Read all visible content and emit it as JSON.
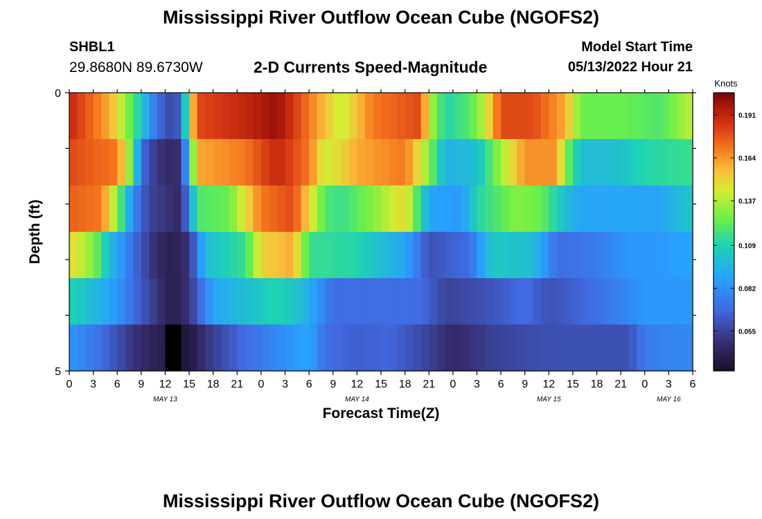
{
  "header": {
    "title": "Mississippi River Outflow Ocean Cube (NGOFS2)",
    "station_id": "SHBL1",
    "coords": "29.8680N  89.6730W",
    "subtitle": "2-D Currents Speed-Magnitude",
    "model_start_label": "Model Start Time",
    "model_start_value": "05/13/2022 Hour 21"
  },
  "footer": {
    "title": "Mississippi River Outflow Ocean Cube (NGOFS2)"
  },
  "chart_data": {
    "type": "heatmap",
    "xlabel": "Forecast Time(Z)",
    "ylabel": "Depth (ft)",
    "x_ticks": [
      "0",
      "3",
      "6",
      "9",
      "12",
      "15",
      "18",
      "21",
      "0",
      "3",
      "6",
      "9",
      "12",
      "15",
      "18",
      "21",
      "0",
      "3",
      "6",
      "9",
      "12",
      "15",
      "18",
      "21",
      "0",
      "3",
      "6"
    ],
    "date_labels": [
      {
        "label": "MAY 13",
        "hour": 12
      },
      {
        "label": "MAY 14",
        "hour": 36
      },
      {
        "label": "MAY 15",
        "hour": 60
      },
      {
        "label": "MAY 16",
        "hour": 75
      }
    ],
    "x_range_hours": [
      0,
      78
    ],
    "y_tick_labels": [
      "0",
      "5"
    ],
    "y_range": [
      0,
      5
    ],
    "colorbar": {
      "label": "Knots",
      "ticks": [
        0.191,
        0.164,
        0.137,
        0.109,
        0.082,
        0.055
      ],
      "range": [
        0.03,
        0.205
      ]
    },
    "rows": [
      {
        "depth_band": 1,
        "keyframes": [
          [
            0,
            0.19
          ],
          [
            5,
            0.16
          ],
          [
            8,
            0.12
          ],
          [
            11,
            0.07
          ],
          [
            13,
            0.055
          ],
          [
            14,
            0.07
          ],
          [
            15,
            0.14
          ],
          [
            16,
            0.18
          ],
          [
            22,
            0.19
          ],
          [
            26,
            0.2
          ],
          [
            30,
            0.17
          ],
          [
            34,
            0.14
          ],
          [
            38,
            0.17
          ],
          [
            44,
            0.18
          ],
          [
            45,
            0.14
          ],
          [
            47,
            0.11
          ],
          [
            50,
            0.12
          ],
          [
            52,
            0.14
          ],
          [
            54,
            0.18
          ],
          [
            58,
            0.18
          ],
          [
            62,
            0.16
          ],
          [
            64,
            0.125
          ],
          [
            69,
            0.125
          ],
          [
            74,
            0.12
          ],
          [
            78,
            0.14
          ]
        ]
      },
      {
        "depth_band": 2,
        "keyframes": [
          [
            0,
            0.18
          ],
          [
            6,
            0.17
          ],
          [
            8,
            0.12
          ],
          [
            9,
            0.07
          ],
          [
            11,
            0.05
          ],
          [
            13,
            0.045
          ],
          [
            14,
            0.05
          ],
          [
            16,
            0.16
          ],
          [
            22,
            0.17
          ],
          [
            26,
            0.19
          ],
          [
            30,
            0.17
          ],
          [
            32,
            0.14
          ],
          [
            36,
            0.16
          ],
          [
            42,
            0.17
          ],
          [
            45,
            0.13
          ],
          [
            47,
            0.095
          ],
          [
            51,
            0.1
          ],
          [
            54,
            0.135
          ],
          [
            57,
            0.165
          ],
          [
            61,
            0.165
          ],
          [
            62,
            0.13
          ],
          [
            64,
            0.1
          ],
          [
            68,
            0.1
          ],
          [
            72,
            0.11
          ],
          [
            78,
            0.115
          ]
        ]
      },
      {
        "depth_band": 3,
        "keyframes": [
          [
            0,
            0.175
          ],
          [
            4,
            0.17
          ],
          [
            6,
            0.13
          ],
          [
            8,
            0.08
          ],
          [
            10,
            0.055
          ],
          [
            14,
            0.045
          ],
          [
            16,
            0.12
          ],
          [
            20,
            0.125
          ],
          [
            24,
            0.17
          ],
          [
            28,
            0.18
          ],
          [
            32,
            0.12
          ],
          [
            34,
            0.115
          ],
          [
            38,
            0.13
          ],
          [
            42,
            0.15
          ],
          [
            45,
            0.09
          ],
          [
            49,
            0.085
          ],
          [
            51,
            0.11
          ],
          [
            56,
            0.13
          ],
          [
            59,
            0.125
          ],
          [
            62,
            0.1
          ],
          [
            64,
            0.09
          ],
          [
            70,
            0.09
          ],
          [
            74,
            0.09
          ],
          [
            78,
            0.105
          ]
        ]
      },
      {
        "depth_band": 4,
        "keyframes": [
          [
            0,
            0.15
          ],
          [
            3,
            0.13
          ],
          [
            5,
            0.1
          ],
          [
            8,
            0.07
          ],
          [
            11,
            0.045
          ],
          [
            13,
            0.04
          ],
          [
            15,
            0.05
          ],
          [
            17,
            0.1
          ],
          [
            22,
            0.115
          ],
          [
            24,
            0.15
          ],
          [
            28,
            0.16
          ],
          [
            30,
            0.115
          ],
          [
            36,
            0.11
          ],
          [
            42,
            0.09
          ],
          [
            45,
            0.06
          ],
          [
            50,
            0.07
          ],
          [
            53,
            0.105
          ],
          [
            58,
            0.1
          ],
          [
            61,
            0.07
          ],
          [
            66,
            0.075
          ],
          [
            70,
            0.085
          ],
          [
            74,
            0.085
          ],
          [
            78,
            0.09
          ]
        ]
      },
      {
        "depth_band": 5,
        "keyframes": [
          [
            0,
            0.11
          ],
          [
            5,
            0.09
          ],
          [
            8,
            0.07
          ],
          [
            11,
            0.05
          ],
          [
            13,
            0.038
          ],
          [
            15,
            0.05
          ],
          [
            18,
            0.09
          ],
          [
            22,
            0.1
          ],
          [
            26,
            0.11
          ],
          [
            29,
            0.1
          ],
          [
            33,
            0.07
          ],
          [
            40,
            0.07
          ],
          [
            44,
            0.07
          ],
          [
            47,
            0.055
          ],
          [
            52,
            0.06
          ],
          [
            57,
            0.07
          ],
          [
            60,
            0.06
          ],
          [
            63,
            0.065
          ],
          [
            68,
            0.075
          ],
          [
            72,
            0.085
          ],
          [
            78,
            0.085
          ]
        ]
      },
      {
        "depth_band": 6,
        "keyframes": [
          [
            0,
            0.085
          ],
          [
            4,
            0.07
          ],
          [
            8,
            0.05
          ],
          [
            11,
            0.04
          ],
          [
            13,
            0.0
          ],
          [
            14,
            0.0
          ],
          [
            15,
            0.035
          ],
          [
            17,
            0.05
          ],
          [
            22,
            0.07
          ],
          [
            30,
            0.09
          ],
          [
            32,
            0.07
          ],
          [
            36,
            0.065
          ],
          [
            40,
            0.068
          ],
          [
            45,
            0.055
          ],
          [
            48,
            0.045
          ],
          [
            53,
            0.055
          ],
          [
            60,
            0.06
          ],
          [
            65,
            0.06
          ],
          [
            70,
            0.06
          ],
          [
            72,
            0.075
          ],
          [
            78,
            0.08
          ]
        ]
      }
    ]
  }
}
